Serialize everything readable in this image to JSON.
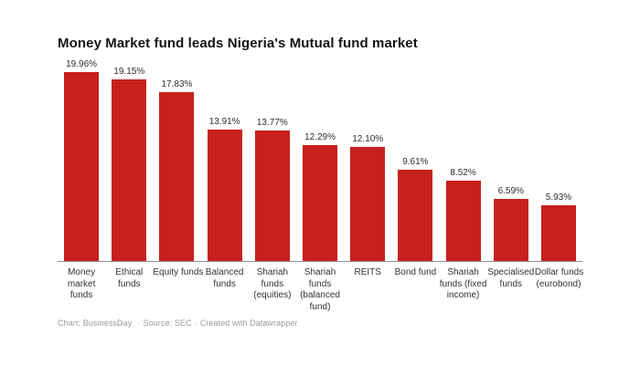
{
  "chart_data": {
    "type": "bar",
    "orientation": "vertical",
    "title": "Money Market fund leads Nigeria's Mutual fund market",
    "xlabel": "",
    "ylabel": "",
    "ylim": [
      0,
      20
    ],
    "grid": false,
    "legend": false,
    "bar_color": "#c7201d",
    "categories": [
      "Money market funds",
      "Ethical funds",
      "Equity funds",
      "Balanced funds",
      "Shariah funds (equities)",
      "Shariah funds (balanced fund)",
      "REITS",
      "Bond fund",
      "Shariah funds (fixed income)",
      "Specialised funds",
      "Dollar funds (eurobond)"
    ],
    "tick_labels": [
      "Money\nmarket\nfunds",
      "Ethical\nfunds",
      "Equity funds",
      "Balanced\nfunds",
      "Shariah\nfunds\n(equities)",
      "Shariah\nfunds\n(balanced\nfund)",
      "REITS",
      "Bond fund",
      "Shariah\nfunds (fixed\nincome)",
      "Specialised\nfunds",
      "Dollar funds\n(eurobond)"
    ],
    "values": [
      19.96,
      19.15,
      17.83,
      13.91,
      13.77,
      12.29,
      12.1,
      9.61,
      8.52,
      6.59,
      5.93
    ],
    "value_labels": [
      "19.96%",
      "19.15%",
      "17.83%",
      "13.91%",
      "13.77%",
      "12.29%",
      "12.10%",
      "9.61%",
      "8.52%",
      "6.59%",
      "5.93%"
    ]
  },
  "footer": {
    "chart_credit": "Chart: BusinessDay",
    "source": "Source: SEC",
    "created_with": "Created with Datawrapper",
    "separator": "·"
  },
  "colors": {
    "bar": "#c7201d",
    "title": "#141414",
    "value_label": "#2e2e2e",
    "tick_label": "#333333",
    "axis_line": "#919191",
    "footer_text": "#9a9a9a",
    "background": "#ffffff"
  }
}
